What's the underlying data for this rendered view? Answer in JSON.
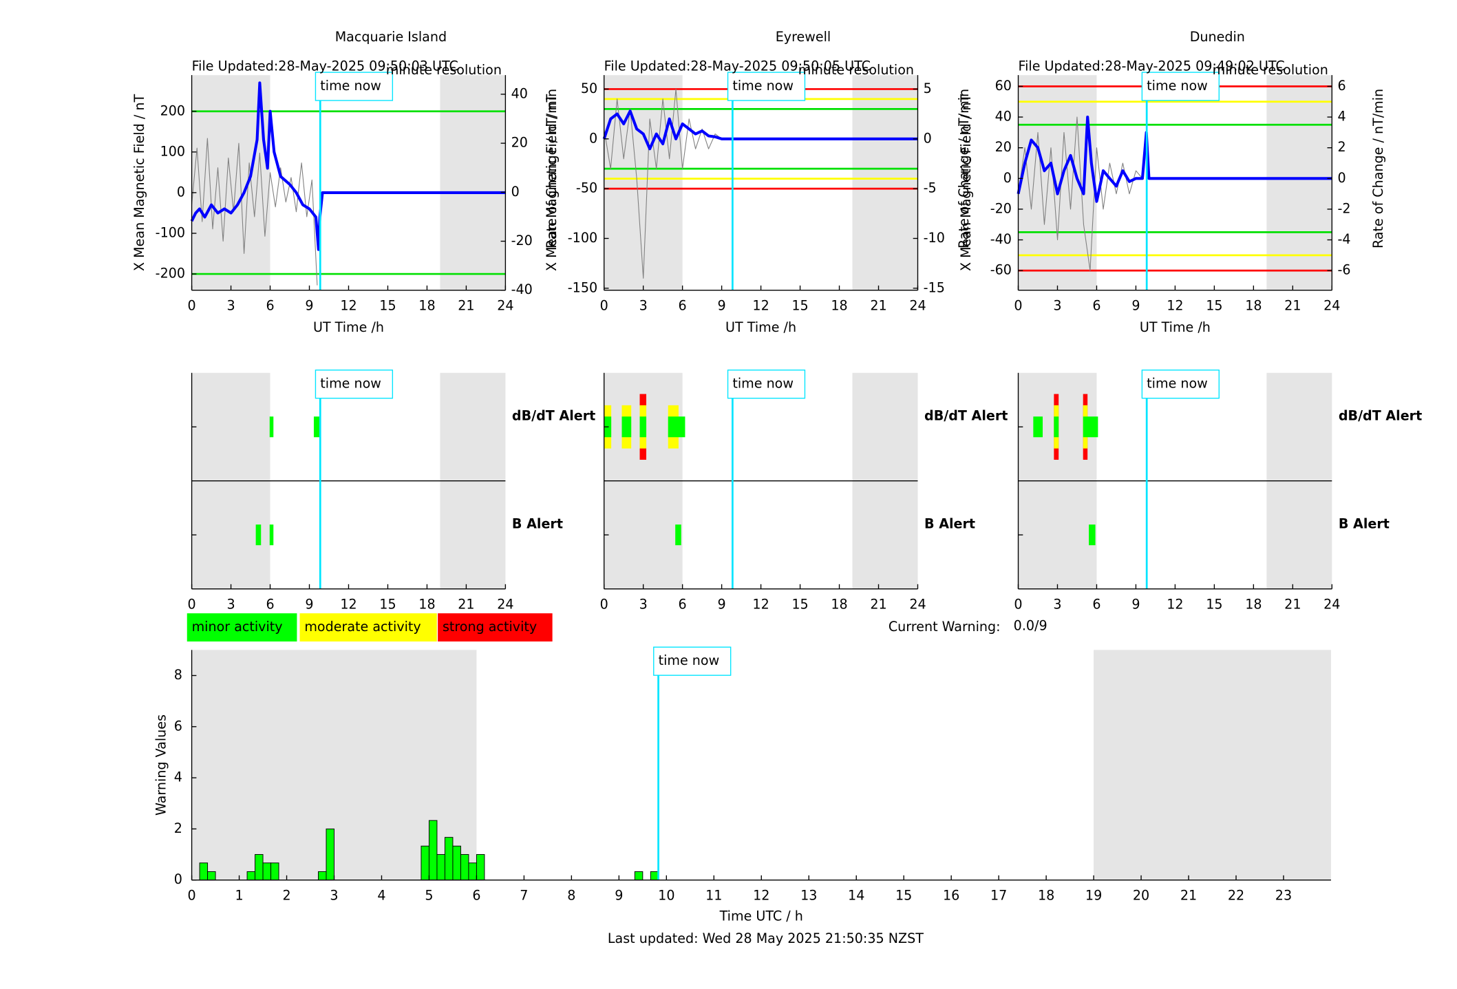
{
  "chart_data": [
    {
      "type": "line",
      "title": "Macquarie Island",
      "subtitle": "File Updated:28-May-2025 09:50:03 UTC",
      "annotation": "minute resolution",
      "time_now": 9.83,
      "time_now_label": "time now",
      "xlabel": "UT Time /h",
      "ylabel": "X Mean Magnetic Field / nT",
      "y2label": "Rate of Change / nT/min",
      "xlim": [
        0,
        24
      ],
      "xticks": [
        0,
        3,
        6,
        9,
        12,
        15,
        18,
        21,
        24
      ],
      "ylim": [
        -240,
        289
      ],
      "yticks": [
        -200,
        -100,
        0,
        100,
        200
      ],
      "y2lim": [
        -40,
        47.8
      ],
      "y2ticks": [
        -40,
        -20,
        0,
        20,
        40
      ],
      "shaded": [
        [
          0,
          6
        ],
        [
          19,
          24
        ]
      ],
      "thresholds": [
        {
          "value": 200,
          "color": "#00e000"
        },
        {
          "value": -200,
          "color": "#00e000"
        }
      ],
      "series": [
        {
          "name": "X Mean Magnetic Field",
          "color": "#0000ff",
          "axis": "y",
          "x": [
            0,
            0.3,
            0.6,
            1,
            1.5,
            2,
            2.5,
            3,
            3.5,
            4,
            4.5,
            5,
            5.2,
            5.5,
            5.8,
            6,
            6.3,
            6.8,
            7.5,
            8,
            8.5,
            9,
            9.5,
            9.7,
            9.8,
            10,
            24
          ],
          "values": [
            -70,
            -50,
            -40,
            -60,
            -30,
            -50,
            -40,
            -50,
            -30,
            0,
            40,
            130,
            270,
            130,
            60,
            200,
            100,
            40,
            20,
            0,
            -30,
            -40,
            -60,
            -140,
            -60,
            0,
            0
          ]
        },
        {
          "name": "Rate of Change",
          "color": "#808080",
          "axis": "y2",
          "x": [
            0,
            0.4,
            0.8,
            1.2,
            1.6,
            2,
            2.4,
            2.8,
            3.2,
            3.6,
            4,
            4.4,
            4.8,
            5.2,
            5.6,
            6,
            6.4,
            6.8,
            7.2,
            7.6,
            8,
            8.4,
            8.8,
            9.2,
            9.6
          ],
          "values": [
            -5,
            18,
            -12,
            22,
            -15,
            10,
            -20,
            14,
            -8,
            20,
            -25,
            12,
            -10,
            16,
            -18,
            8,
            -6,
            10,
            -4,
            6,
            -8,
            12,
            -10,
            5,
            -38
          ]
        }
      ]
    },
    {
      "type": "line",
      "title": "Eyrewell",
      "subtitle": "File Updated:28-May-2025 09:50:05 UTC",
      "annotation": "minute resolution",
      "time_now": 9.83,
      "time_now_label": "time now",
      "xlabel": "UT Time /h",
      "ylabel": "X Mean Magnetic Field / nT",
      "y2label": "Rate of Change / nT/min",
      "xlim": [
        0,
        24
      ],
      "xticks": [
        0,
        3,
        6,
        9,
        12,
        15,
        18,
        21,
        24
      ],
      "ylim": [
        -152,
        64
      ],
      "yticks": [
        -150,
        -100,
        -50,
        0,
        50
      ],
      "y2lim": [
        -15.2,
        6.4
      ],
      "y2ticks": [
        -15,
        -10,
        -5,
        0,
        5
      ],
      "shaded": [
        [
          0,
          6
        ],
        [
          19,
          24
        ]
      ],
      "thresholds": [
        {
          "value": 50,
          "color": "#ff0000"
        },
        {
          "value": 40,
          "color": "#ffff00"
        },
        {
          "value": 30,
          "color": "#00e000"
        },
        {
          "value": -30,
          "color": "#00e000"
        },
        {
          "value": -40,
          "color": "#ffff00"
        },
        {
          "value": -50,
          "color": "#ff0000"
        }
      ],
      "series": [
        {
          "name": "X Mean Magnetic Field",
          "color": "#0000ff",
          "axis": "y",
          "x": [
            0,
            0.5,
            1,
            1.5,
            2,
            2.5,
            3,
            3.5,
            4,
            4.5,
            5,
            5.5,
            6,
            6.5,
            7,
            7.5,
            8,
            8.5,
            9,
            24
          ],
          "values": [
            0,
            20,
            25,
            15,
            28,
            10,
            5,
            -10,
            5,
            -5,
            20,
            0,
            15,
            10,
            5,
            8,
            3,
            2,
            0,
            0
          ]
        },
        {
          "name": "Rate of Change",
          "color": "#808080",
          "axis": "y2",
          "x": [
            0,
            0.5,
            1,
            1.5,
            2,
            2.5,
            3,
            3.5,
            4,
            4.5,
            5,
            5.5,
            6,
            6.5,
            7,
            7.5,
            8,
            8.5,
            9
          ],
          "values": [
            1,
            -3,
            4,
            -2,
            3,
            -4,
            -14,
            2,
            -3,
            4,
            -2,
            5,
            -3,
            2,
            -1,
            1,
            -1,
            0.5,
            0
          ]
        }
      ]
    },
    {
      "type": "line",
      "title": "Dunedin",
      "subtitle": "File Updated:28-May-2025 09:49:02 UTC",
      "annotation": "minute resolution",
      "time_now": 9.83,
      "time_now_label": "time now",
      "xlabel": "UT Time /h",
      "ylabel": "X Mean Magnetic Field / nT",
      "y2label": "Rate of Change / nT/min",
      "xlim": [
        0,
        24
      ],
      "xticks": [
        0,
        3,
        6,
        9,
        12,
        15,
        18,
        21,
        24
      ],
      "ylim": [
        -72.8,
        67.3
      ],
      "yticks": [
        -60,
        -40,
        -20,
        0,
        20,
        40,
        60
      ],
      "y2lim": [
        -7.28,
        6.73
      ],
      "y2ticks": [
        -6,
        -4,
        -2,
        0,
        2,
        4,
        6
      ],
      "shaded": [
        [
          0,
          6
        ],
        [
          19,
          24
        ]
      ],
      "thresholds": [
        {
          "value": 60,
          "color": "#ff0000"
        },
        {
          "value": 50,
          "color": "#ffff00"
        },
        {
          "value": 35,
          "color": "#00e000"
        },
        {
          "value": -35,
          "color": "#00e000"
        },
        {
          "value": -50,
          "color": "#ffff00"
        },
        {
          "value": -60,
          "color": "#ff0000"
        }
      ],
      "series": [
        {
          "name": "X Mean Magnetic Field",
          "color": "#0000ff",
          "axis": "y",
          "x": [
            0,
            0.5,
            1,
            1.5,
            2,
            2.5,
            3,
            3.5,
            4,
            4.5,
            5,
            5.3,
            5.6,
            6,
            6.5,
            7,
            7.5,
            8,
            8.5,
            9,
            9.5,
            9.8,
            10,
            24
          ],
          "values": [
            -10,
            10,
            25,
            20,
            5,
            10,
            -10,
            5,
            15,
            0,
            -10,
            40,
            10,
            -15,
            5,
            0,
            -5,
            5,
            -2,
            0,
            0,
            30,
            0,
            0
          ]
        },
        {
          "name": "Rate of Change",
          "color": "#808080",
          "axis": "y2",
          "x": [
            0,
            0.5,
            1,
            1.5,
            2,
            2.5,
            3,
            3.5,
            4,
            4.5,
            5,
            5.5,
            6,
            6.5,
            7,
            7.5,
            8,
            8.5,
            9,
            9.5
          ],
          "values": [
            -1,
            2,
            -2,
            3,
            -3,
            2,
            -4,
            3,
            -2,
            4,
            -3,
            -6,
            2,
            -2,
            1,
            -1,
            1,
            -1,
            0.5,
            0
          ]
        }
      ]
    },
    {
      "type": "timeline",
      "time_now": 9.83,
      "time_now_label": "time now",
      "xlim": [
        0,
        24
      ],
      "xticks": [
        0,
        3,
        6,
        9,
        12,
        15,
        18,
        21,
        24
      ],
      "shaded": [
        [
          0,
          6
        ],
        [
          19,
          24
        ]
      ],
      "rows": [
        {
          "name": "dB/dT Alert",
          "color": "#000000",
          "segments": [
            {
              "start": 5.96,
              "end": 6.25,
              "color": "#00ff00"
            },
            {
              "start": 9.34,
              "end": 9.77,
              "color": "#00ff00"
            }
          ]
        },
        {
          "name": "B Alert",
          "color": "#0000ff",
          "segments": [
            {
              "start": 4.9,
              "end": 5.3,
              "color": "#00ff00"
            },
            {
              "start": 5.96,
              "end": 6.25,
              "color": "#00ff00"
            }
          ]
        }
      ]
    },
    {
      "type": "timeline",
      "time_now": 9.83,
      "time_now_label": "time now",
      "xlim": [
        0,
        24
      ],
      "xticks": [
        0,
        3,
        6,
        9,
        12,
        15,
        18,
        21,
        24
      ],
      "shaded": [
        [
          0,
          6
        ],
        [
          19,
          24
        ]
      ],
      "rows": [
        {
          "name": "dB/dT Alert",
          "color": "#000000",
          "segments": [
            {
              "start": 0,
              "end": 0.55,
              "color": "#ffff00"
            },
            {
              "start": 0,
              "end": 0.55,
              "color": "#00ff00"
            },
            {
              "start": 1.36,
              "end": 2.08,
              "color": "#ffff00"
            },
            {
              "start": 1.36,
              "end": 2.08,
              "color": "#00ff00"
            },
            {
              "start": 2.73,
              "end": 3.23,
              "color": "#ff0000"
            },
            {
              "start": 2.73,
              "end": 3.23,
              "color": "#ffff00"
            },
            {
              "start": 2.73,
              "end": 3.23,
              "color": "#00ff00"
            },
            {
              "start": 4.9,
              "end": 5.7,
              "color": "#ffff00"
            },
            {
              "start": 4.9,
              "end": 6.2,
              "color": "#00ff00"
            }
          ]
        },
        {
          "name": "B Alert",
          "color": "#0000ff",
          "segments": [
            {
              "start": 5.45,
              "end": 5.9,
              "color": "#00ff00"
            }
          ]
        }
      ]
    },
    {
      "type": "timeline",
      "time_now": 9.83,
      "time_now_label": "time now",
      "xlim": [
        0,
        24
      ],
      "xticks": [
        0,
        3,
        6,
        9,
        12,
        15,
        18,
        21,
        24
      ],
      "shaded": [
        [
          0,
          6
        ],
        [
          19,
          24
        ]
      ],
      "rows": [
        {
          "name": "dB/dT Alert",
          "color": "#000000",
          "segments": [
            {
              "start": 1.15,
              "end": 1.87,
              "color": "#00ff00"
            },
            {
              "start": 2.73,
              "end": 3.09,
              "color": "#ff0000"
            },
            {
              "start": 2.73,
              "end": 3.09,
              "color": "#ffff00"
            },
            {
              "start": 2.73,
              "end": 3.09,
              "color": "#00ff00"
            },
            {
              "start": 4.96,
              "end": 5.3,
              "color": "#ff0000"
            },
            {
              "start": 4.96,
              "end": 5.3,
              "color": "#ffff00"
            },
            {
              "start": 4.96,
              "end": 6.1,
              "color": "#00ff00"
            }
          ]
        },
        {
          "name": "B Alert",
          "color": "#0000ff",
          "segments": [
            {
              "start": 5.4,
              "end": 5.9,
              "color": "#00ff00"
            }
          ]
        }
      ]
    },
    {
      "type": "bar",
      "time_now": 9.83,
      "time_now_label": "time now",
      "xlabel": "Time UTC / h",
      "ylabel": "Warning Values",
      "color": "#00ff00",
      "xlim": [
        0,
        24
      ],
      "xticks": [
        0,
        1,
        2,
        3,
        4,
        5,
        6,
        7,
        8,
        9,
        10,
        11,
        12,
        13,
        14,
        15,
        16,
        17,
        18,
        19,
        20,
        21,
        22,
        23
      ],
      "ylim": [
        0,
        9
      ],
      "yticks": [
        0,
        2,
        4,
        6,
        8
      ],
      "shaded": [
        [
          0,
          6
        ],
        [
          19,
          24
        ]
      ],
      "x": [
        0.1667,
        0.3333,
        1.1667,
        1.3333,
        1.5,
        1.6667,
        2.6667,
        2.8333,
        4.8333,
        5,
        5.1667,
        5.3333,
        5.5,
        5.6667,
        5.8333,
        6,
        9.3333,
        9.6667
      ],
      "x_end": [
        0.3333,
        0.5,
        1.3333,
        1.5,
        1.6667,
        1.8333,
        2.8333,
        3,
        5,
        5.1667,
        5.3333,
        5.5,
        5.6667,
        5.8333,
        6,
        6.1667,
        9.5,
        9.8333
      ],
      "values": [
        0.67,
        0.33,
        0.33,
        1,
        0.67,
        0.67,
        0.33,
        2,
        1.33,
        2.33,
        1,
        1.67,
        1.33,
        1,
        0.67,
        1,
        0.33,
        0.33
      ]
    }
  ],
  "legend": {
    "items": [
      {
        "label": "minor activity",
        "color": "#00ff00"
      },
      {
        "label": "moderate activity",
        "color": "#ffff00"
      },
      {
        "label": "strong activity",
        "color": "#ff0000"
      }
    ]
  },
  "current_warning": {
    "label": "Current Warning:",
    "value": "0.0/9"
  },
  "footer": "Last updated: Wed 28 May 2025 21:50:35 NZST"
}
